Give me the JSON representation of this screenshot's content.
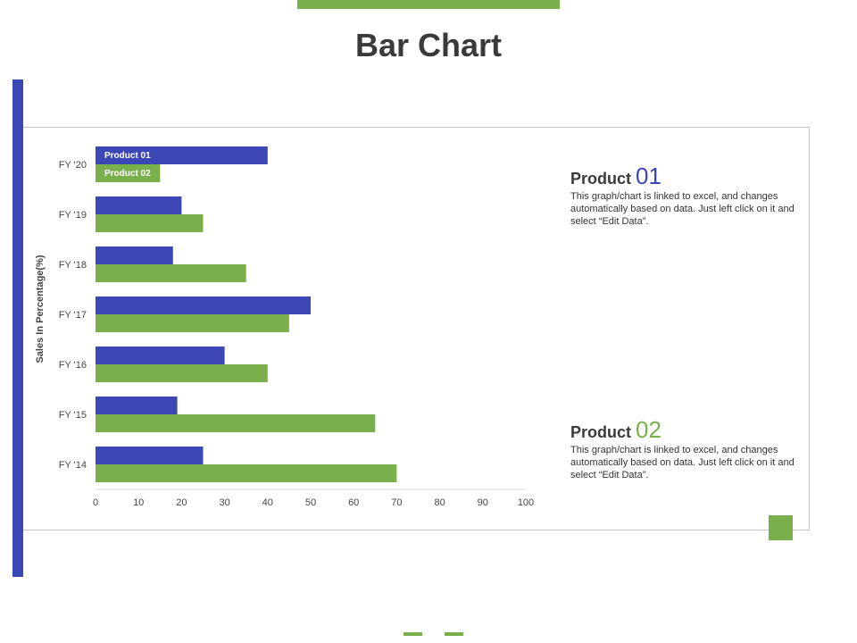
{
  "page": {
    "title": "Bar Chart"
  },
  "colors": {
    "product1": "#3a47b5",
    "product2": "#7ab04b",
    "axis": "#d9d9d9",
    "text": "#444444"
  },
  "descriptions": [
    {
      "label": "Product",
      "number": "01",
      "color": "#3a47b5",
      "text": "This graph/chart is linked to excel, and changes automatically based on data. Just left click on it and select “Edit Data”."
    },
    {
      "label": "Product",
      "number": "02",
      "color": "#7ab04b",
      "text": "This graph/chart is linked to excel, and changes automatically based on data. Just left click on it and select “Edit Data”."
    }
  ],
  "chart_data": {
    "type": "bar",
    "orientation": "horizontal",
    "title": "",
    "xlabel": "",
    "ylabel": "Sales In Percentage(%)",
    "xlim": [
      0,
      100
    ],
    "xticks": [
      0,
      10,
      20,
      30,
      40,
      50,
      60,
      70,
      80,
      90,
      100
    ],
    "categories": [
      "FY '20",
      "FY '19",
      "FY '18",
      "FY '17",
      "FY '16",
      "FY '15",
      "FY '14"
    ],
    "series": [
      {
        "name": "Product 01",
        "color": "#3a47b5",
        "values": [
          40,
          20,
          18,
          50,
          30,
          19,
          25
        ]
      },
      {
        "name": "Product 02",
        "color": "#7ab04b",
        "values": [
          15,
          25,
          35,
          45,
          40,
          65,
          70
        ]
      }
    ],
    "grid": false,
    "legend": "inside-bars"
  }
}
